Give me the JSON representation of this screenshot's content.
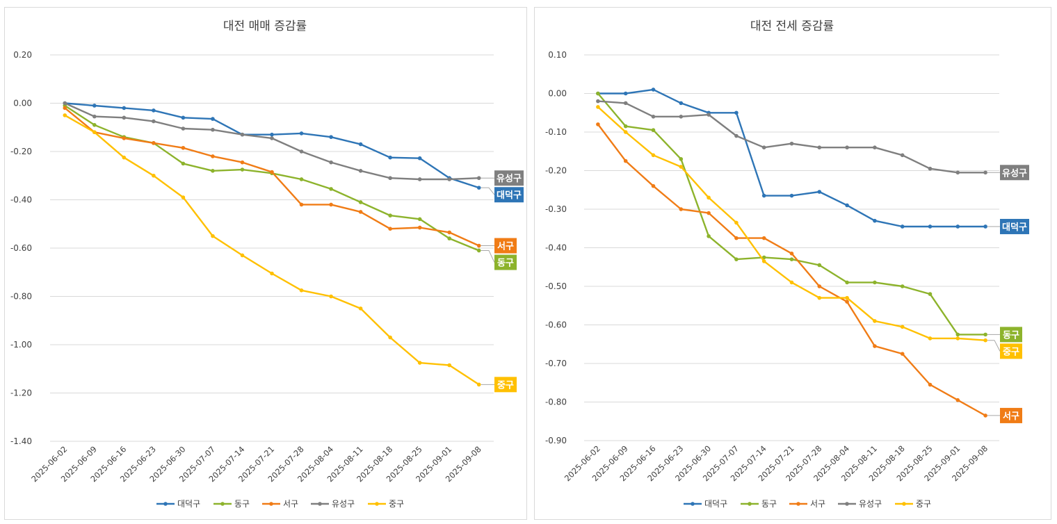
{
  "colors": {
    "대덕구": "#2e75b6",
    "동구": "#8db32c",
    "서구": "#f07c16",
    "유성구": "#7f7f7f",
    "중구": "#ffc000"
  },
  "chart_data": [
    {
      "type": "line",
      "title": "대전 매매 증감률",
      "xlabel": "",
      "ylabel": "",
      "ylim": [
        -1.4,
        0.2
      ],
      "yticks": [
        0.2,
        0.0,
        -0.2,
        -0.4,
        -0.6,
        -0.8,
        -1.0,
        -1.2,
        -1.4
      ],
      "ytick_labels": [
        "0.20",
        "0.00",
        "-0.20",
        "-0.40",
        "-0.60",
        "-0.80",
        "-1.00",
        "-1.20",
        "-1.40"
      ],
      "grid": true,
      "legend": "bottom",
      "categories": [
        "2025-06-02",
        "2025-06-09",
        "2025-06-16",
        "2025-06-23",
        "2025-06-30",
        "2025-07-07",
        "2025-07-14",
        "2025-07-21",
        "2025-07-28",
        "2025-08-04",
        "2025-08-11",
        "2025-08-18",
        "2025-08-25",
        "2025-09-01",
        "2025-09-08"
      ],
      "series": [
        {
          "name": "대덕구",
          "values": [
            0.0,
            -0.01,
            -0.02,
            -0.03,
            -0.06,
            -0.065,
            -0.13,
            -0.13,
            -0.125,
            -0.14,
            -0.17,
            -0.225,
            -0.228,
            -0.31,
            -0.35
          ]
        },
        {
          "name": "동구",
          "values": [
            -0.01,
            -0.09,
            -0.14,
            -0.165,
            -0.25,
            -0.28,
            -0.275,
            -0.29,
            -0.315,
            -0.355,
            -0.41,
            -0.465,
            -0.48,
            -0.56,
            -0.61
          ]
        },
        {
          "name": "서구",
          "values": [
            -0.02,
            -0.12,
            -0.145,
            -0.165,
            -0.185,
            -0.22,
            -0.245,
            -0.285,
            -0.42,
            -0.42,
            -0.45,
            -0.52,
            -0.515,
            -0.535,
            -0.59
          ]
        },
        {
          "name": "유성구",
          "values": [
            0.0,
            -0.055,
            -0.06,
            -0.075,
            -0.105,
            -0.11,
            -0.13,
            -0.145,
            -0.2,
            -0.245,
            -0.28,
            -0.31,
            -0.315,
            -0.315,
            -0.31
          ]
        },
        {
          "name": "중구",
          "values": [
            -0.05,
            -0.12,
            -0.225,
            -0.3,
            -0.39,
            -0.55,
            -0.63,
            -0.705,
            -0.775,
            -0.8,
            -0.85,
            -0.97,
            -1.075,
            -1.085,
            -1.165
          ]
        }
      ],
      "end_labels": [
        {
          "name": "유성구",
          "value": -0.31
        },
        {
          "name": "대덕구",
          "value": -0.35
        },
        {
          "name": "서구",
          "value": -0.59
        },
        {
          "name": "동구",
          "value": -0.61
        },
        {
          "name": "중구",
          "value": -1.165
        }
      ]
    },
    {
      "type": "line",
      "title": "대전 전세 증감률",
      "xlabel": "",
      "ylabel": "",
      "ylim": [
        -0.9,
        0.1
      ],
      "yticks": [
        0.1,
        0.0,
        -0.1,
        -0.2,
        -0.3,
        -0.4,
        -0.5,
        -0.6,
        -0.7,
        -0.8,
        -0.9
      ],
      "ytick_labels": [
        "0.10",
        "0.00",
        "-0.10",
        "-0.20",
        "-0.30",
        "-0.40",
        "-0.50",
        "-0.60",
        "-0.70",
        "-0.80",
        "-0.90"
      ],
      "grid": true,
      "legend": "bottom",
      "categories": [
        "2025-06-02",
        "2025-06-09",
        "2025-06-16",
        "2025-06-23",
        "2025-06-30",
        "2025-07-07",
        "2025-07-14",
        "2025-07-21",
        "2025-07-28",
        "2025-08-04",
        "2025-08-11",
        "2025-08-18",
        "2025-08-25",
        "2025-09-01",
        "2025-09-08"
      ],
      "series": [
        {
          "name": "대덕구",
          "values": [
            0.0,
            0.0,
            0.01,
            -0.025,
            -0.05,
            -0.05,
            -0.265,
            -0.265,
            -0.255,
            -0.29,
            -0.33,
            -0.345,
            -0.345,
            -0.345,
            -0.345
          ]
        },
        {
          "name": "동구",
          "values": [
            0.0,
            -0.085,
            -0.095,
            -0.17,
            -0.37,
            -0.43,
            -0.425,
            -0.43,
            -0.445,
            -0.49,
            -0.49,
            -0.5,
            -0.52,
            -0.625,
            -0.625
          ]
        },
        {
          "name": "서구",
          "values": [
            -0.08,
            -0.175,
            -0.24,
            -0.3,
            -0.31,
            -0.375,
            -0.375,
            -0.415,
            -0.5,
            -0.54,
            -0.655,
            -0.675,
            -0.755,
            -0.795,
            -0.835
          ]
        },
        {
          "name": "유성구",
          "values": [
            -0.02,
            -0.025,
            -0.06,
            -0.06,
            -0.055,
            -0.11,
            -0.14,
            -0.13,
            -0.14,
            -0.14,
            -0.14,
            -0.16,
            -0.195,
            -0.205,
            -0.205
          ]
        },
        {
          "name": "중구",
          "values": [
            -0.035,
            -0.1,
            -0.16,
            -0.19,
            -0.27,
            -0.335,
            -0.435,
            -0.49,
            -0.53,
            -0.53,
            -0.59,
            -0.605,
            -0.635,
            -0.635,
            -0.64
          ]
        }
      ],
      "end_labels": [
        {
          "name": "유성구",
          "value": -0.205
        },
        {
          "name": "대덕구",
          "value": -0.345
        },
        {
          "name": "동구",
          "value": -0.625
        },
        {
          "name": "중구",
          "value": -0.64
        },
        {
          "name": "서구",
          "value": -0.835
        }
      ]
    }
  ]
}
